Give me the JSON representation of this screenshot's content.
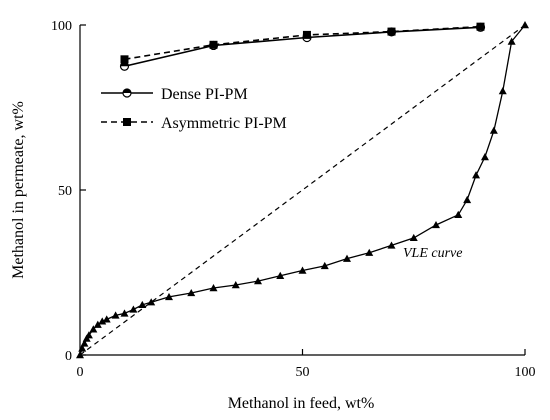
{
  "chart_data": {
    "type": "line",
    "title": "",
    "xlabel": "Methanol in feed, wt%",
    "ylabel": "Methanol in permeate, wt%",
    "xlim": [
      0,
      100
    ],
    "ylim": [
      0,
      100
    ],
    "xticks": [
      "0",
      "50",
      "100"
    ],
    "yticks": [
      "0",
      "50",
      "100"
    ],
    "grid": false,
    "legend_position": "top-left",
    "series": [
      {
        "name": "Dense PI-PM",
        "marker": "half-filled-circle",
        "line": "solid",
        "x": [
          10,
          30,
          51,
          70,
          90
        ],
        "y": [
          87.5,
          93.8,
          96.2,
          97.9,
          99.3
        ]
      },
      {
        "name": "Asymmetric PI-PM",
        "marker": "filled-square",
        "line": "dashed",
        "x": [
          10,
          30,
          51,
          70,
          90
        ],
        "y": [
          89.6,
          94.0,
          97.0,
          98.0,
          99.5
        ]
      }
    ],
    "vle_curve": {
      "label": "VLE curve",
      "marker": "filled-triangle",
      "x": [
        0,
        0.5,
        1,
        1.5,
        2,
        3,
        4,
        5,
        6,
        8,
        10,
        12,
        14,
        16,
        20,
        25,
        30,
        35,
        40,
        45,
        50,
        55,
        60,
        65,
        70,
        75,
        80,
        85,
        87,
        89,
        91,
        93,
        95,
        97,
        100
      ],
      "y": [
        0,
        2,
        3.5,
        5,
        6,
        7.8,
        9.2,
        10.2,
        10.8,
        12,
        12.6,
        13.8,
        15.2,
        16,
        17.6,
        18.8,
        20.3,
        21.2,
        22.4,
        24,
        25.6,
        27,
        29.2,
        31,
        33.2,
        35.5,
        39.4,
        42.5,
        47,
        54.5,
        60,
        68,
        80,
        95,
        100
      ]
    },
    "diagonal": {
      "from": [
        0,
        0
      ],
      "to": [
        100,
        100
      ],
      "line": "dashed"
    }
  },
  "legend": {
    "items": [
      "Dense PI-PM",
      "Asymmetric PI-PM"
    ]
  }
}
